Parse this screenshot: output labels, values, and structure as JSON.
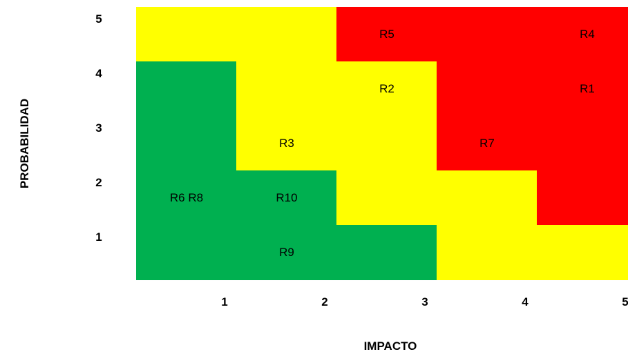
{
  "chart_data": {
    "type": "heatmap",
    "xlabel": "IMPACTO",
    "ylabel": "PROBABILIDAD",
    "x_ticks": [
      "1",
      "2",
      "3",
      "4",
      "5"
    ],
    "y_ticks": [
      "5",
      "4",
      "3",
      "2",
      "1"
    ],
    "colors": {
      "G": "#00b050",
      "Y": "#ffff00",
      "R": "#ff0000"
    },
    "grid": [
      [
        "Y",
        "Y",
        "R",
        "R",
        "R"
      ],
      [
        "G",
        "Y",
        "Y",
        "R",
        "R"
      ],
      [
        "G",
        "Y",
        "Y",
        "R",
        "R"
      ],
      [
        "G",
        "G",
        "Y",
        "Y",
        "R"
      ],
      [
        "G",
        "G",
        "G",
        "Y",
        "Y"
      ]
    ],
    "labels": [
      {
        "text": "R5",
        "impact": 3,
        "probability": 5
      },
      {
        "text": "R4",
        "impact": 5,
        "probability": 5
      },
      {
        "text": "R2",
        "impact": 3,
        "probability": 4
      },
      {
        "text": "R1",
        "impact": 5,
        "probability": 4
      },
      {
        "text": "R3",
        "impact": 2,
        "probability": 3
      },
      {
        "text": "R7",
        "impact": 4,
        "probability": 3
      },
      {
        "text": "R6  R8",
        "impact": 1,
        "probability": 2
      },
      {
        "text": "R10",
        "impact": 2,
        "probability": 2
      },
      {
        "text": "R9",
        "impact": 2,
        "probability": 1
      }
    ]
  }
}
